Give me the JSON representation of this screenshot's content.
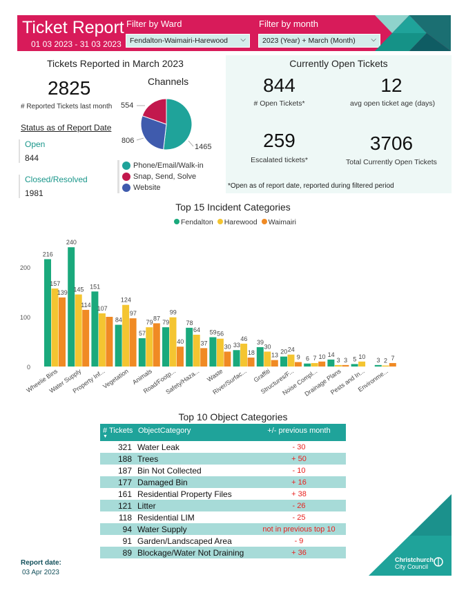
{
  "header": {
    "title": "Ticket Report",
    "date_range": "01 03 2023 - 31 03 2023",
    "ward_filter_label": "Filter by Ward",
    "ward_filter_value": "Fendalton-Waimairi-Harewood",
    "month_filter_label": "Filter by month",
    "month_filter_value": "2023 (Year) + March (Month)",
    "accent_color": "#d81b5a"
  },
  "summary": {
    "title": "Tickets Reported in March 2023",
    "total_reported": "2825",
    "total_reported_caption": "# Reported Tickets last month",
    "status_title": "Status as of Report Date",
    "open_label": "Open",
    "open_value": "844",
    "closed_label": "Closed/Resolved",
    "closed_value": "1981"
  },
  "channels": {
    "title": "Channels",
    "slices": [
      {
        "name": "Phone/Email/Walk-in",
        "value": 1465,
        "label": "1465",
        "color": "#1fa39a"
      },
      {
        "name": "Snap, Send, Solve",
        "value": 554,
        "label": "554",
        "color": "#c2184d"
      },
      {
        "name": "Website",
        "value": 806,
        "label": "806",
        "color": "#3f5bad"
      }
    ]
  },
  "open_tickets": {
    "title": "Currently Open Tickets",
    "open_count": "844",
    "open_caption": "# Open Tickets*",
    "avg_age": "12",
    "avg_age_caption": "avg open ticket age (days)",
    "escalated": "259",
    "escalated_caption": "Escalated tickets*",
    "total_open": "3706",
    "total_open_caption": "Total Currently Open Tickets",
    "note": "*Open as of report date, reported during filtered period"
  },
  "chart_data": {
    "type": "bar",
    "title": "Top 15 Incident Categories",
    "categories": [
      "Wheelie Bins",
      "Water Supply",
      "Property Inf...",
      "Vegetation",
      "Animals",
      "Road/Footp...",
      "Safety/Haza...",
      "Waste",
      "River/Surfac...",
      "Graffiti",
      "Structures/F...",
      "Noise Compl...",
      "Drainage Plans",
      "Pests and In...",
      "Environme..."
    ],
    "series": [
      {
        "name": "Fendalton",
        "color": "#1aa97c",
        "values": [
          216,
          240,
          151,
          84,
          57,
          79,
          78,
          59,
          33,
          39,
          20,
          6,
          14,
          5,
          3
        ]
      },
      {
        "name": "Harewood",
        "color": "#f4c531",
        "values": [
          157,
          145,
          107,
          124,
          79,
          99,
          64,
          56,
          46,
          30,
          24,
          7,
          3,
          10,
          2
        ]
      },
      {
        "name": "Waimairi",
        "color": "#f08a24",
        "values": [
          139,
          114,
          100,
          97,
          87,
          40,
          37,
          30,
          18,
          13,
          9,
          10,
          3,
          null,
          7
        ]
      }
    ],
    "data_labels": [
      [
        "216",
        "240",
        "151",
        "84",
        "57",
        "79",
        "78",
        "59",
        "33",
        "39",
        "20",
        "6",
        "14",
        "5",
        "3"
      ],
      [
        "157",
        "145",
        "107",
        "124",
        "79",
        "99",
        "64",
        "56",
        "46",
        "30",
        "24",
        "7",
        "3",
        "10",
        "2"
      ],
      [
        "139",
        "114",
        "",
        "97",
        "87",
        "40",
        "37",
        "30",
        "18",
        "13",
        "9",
        "10",
        "3",
        "",
        "7"
      ]
    ],
    "yticks": [
      "0",
      "100",
      "200"
    ],
    "ylim": [
      0,
      250
    ],
    "legend_position": "top-center",
    "grid": false
  },
  "table": {
    "title": "Top 10 Object Categories",
    "col_tickets": "# Tickets",
    "col_category": "ObjectCategory",
    "col_change": "+/- previous month",
    "rows": [
      {
        "tickets": "321",
        "category": "Water Leak",
        "change": "- 30"
      },
      {
        "tickets": "188",
        "category": "Trees",
        "change": "+ 50"
      },
      {
        "tickets": "187",
        "category": "Bin Not Collected",
        "change": "- 10"
      },
      {
        "tickets": "177",
        "category": "Damaged Bin",
        "change": "+ 16"
      },
      {
        "tickets": "161",
        "category": "Residential Property Files",
        "change": "+ 38"
      },
      {
        "tickets": "121",
        "category": "Litter",
        "change": "- 26"
      },
      {
        "tickets": "118",
        "category": "Residential LIM",
        "change": "- 25"
      },
      {
        "tickets": "94",
        "category": "Water Supply",
        "change": "not in previous top 10"
      },
      {
        "tickets": "91",
        "category": "Garden/Landscaped Area",
        "change": "- 9"
      },
      {
        "tickets": "89",
        "category": "Blockage/Water Not Draining",
        "change": "+ 36"
      }
    ]
  },
  "footer": {
    "report_date_label": "Report date:",
    "report_date_value": "03 Apr 2023",
    "logo_line1": "Christchurch",
    "logo_line2": "City Council"
  }
}
